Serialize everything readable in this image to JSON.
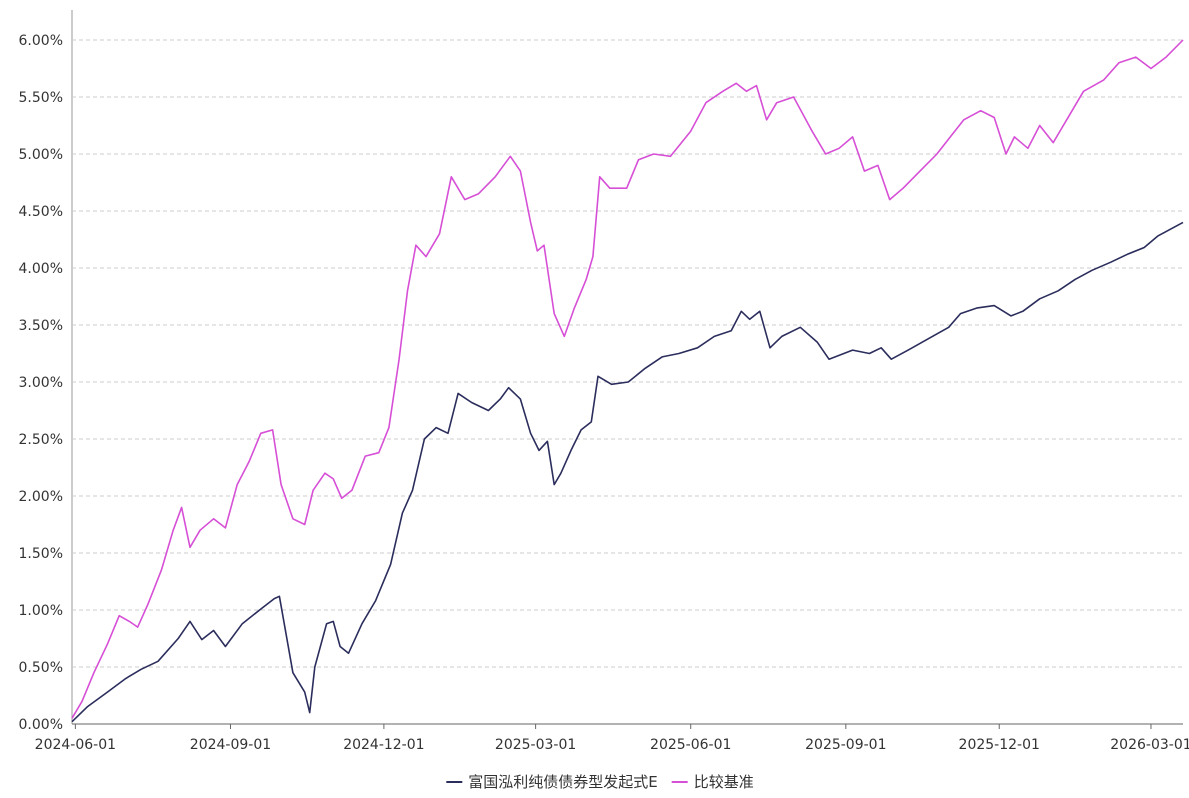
{
  "chart_data": {
    "type": "line",
    "title": "",
    "xlabel": "",
    "ylabel": "",
    "ylim": [
      0,
      6
    ],
    "y_unit": "%",
    "y_ticks": [
      "0.00%",
      "0.50%",
      "1.00%",
      "1.50%",
      "2.00%",
      "2.50%",
      "3.00%",
      "3.50%",
      "4.00%",
      "4.50%",
      "5.00%",
      "5.50%",
      "6.00%"
    ],
    "x_range": [
      "2024-05-30",
      "2026-03-20"
    ],
    "x_ticks": [
      "2024-06-01",
      "2024-09-01",
      "2024-12-01",
      "2025-03-01",
      "2025-06-01",
      "2025-09-01",
      "2025-12-01",
      "2026-03-01"
    ],
    "grid": true,
    "legend_position": "bottom-center",
    "series": [
      {
        "name": "富国泓利纯债债券型发起式E",
        "color": "#2b2d5c",
        "points": [
          [
            "2024-05-30",
            0.02
          ],
          [
            "2024-06-08",
            0.15
          ],
          [
            "2024-06-20",
            0.28
          ],
          [
            "2024-07-01",
            0.4
          ],
          [
            "2024-07-10",
            0.48
          ],
          [
            "2024-07-20",
            0.55
          ],
          [
            "2024-08-01",
            0.75
          ],
          [
            "2024-08-08",
            0.9
          ],
          [
            "2024-08-15",
            0.74
          ],
          [
            "2024-08-22",
            0.82
          ],
          [
            "2024-08-29",
            0.68
          ],
          [
            "2024-09-08",
            0.88
          ],
          [
            "2024-09-20",
            1.02
          ],
          [
            "2024-09-27",
            1.1
          ],
          [
            "2024-09-30",
            1.12
          ],
          [
            "2024-10-08",
            0.45
          ],
          [
            "2024-10-15",
            0.28
          ],
          [
            "2024-10-18",
            0.1
          ],
          [
            "2024-10-21",
            0.5
          ],
          [
            "2024-10-28",
            0.88
          ],
          [
            "2024-11-01",
            0.9
          ],
          [
            "2024-11-05",
            0.68
          ],
          [
            "2024-11-10",
            0.62
          ],
          [
            "2024-11-18",
            0.88
          ],
          [
            "2024-11-26",
            1.08
          ],
          [
            "2024-12-05",
            1.4
          ],
          [
            "2024-12-12",
            1.85
          ],
          [
            "2024-12-18",
            2.05
          ],
          [
            "2024-12-25",
            2.5
          ],
          [
            "2025-01-01",
            2.6
          ],
          [
            "2025-01-08",
            2.55
          ],
          [
            "2025-01-14",
            2.9
          ],
          [
            "2025-01-22",
            2.82
          ],
          [
            "2025-02-01",
            2.75
          ],
          [
            "2025-02-08",
            2.85
          ],
          [
            "2025-02-13",
            2.95
          ],
          [
            "2025-02-20",
            2.85
          ],
          [
            "2025-02-26",
            2.55
          ],
          [
            "2025-03-03",
            2.4
          ],
          [
            "2025-03-08",
            2.48
          ],
          [
            "2025-03-12",
            2.1
          ],
          [
            "2025-03-16",
            2.2
          ],
          [
            "2025-03-22",
            2.4
          ],
          [
            "2025-03-28",
            2.58
          ],
          [
            "2025-04-03",
            2.65
          ],
          [
            "2025-04-07",
            3.05
          ],
          [
            "2025-04-15",
            2.98
          ],
          [
            "2025-04-25",
            3.0
          ],
          [
            "2025-05-05",
            3.12
          ],
          [
            "2025-05-15",
            3.22
          ],
          [
            "2025-05-25",
            3.25
          ],
          [
            "2025-06-05",
            3.3
          ],
          [
            "2025-06-15",
            3.4
          ],
          [
            "2025-06-25",
            3.45
          ],
          [
            "2025-07-01",
            3.62
          ],
          [
            "2025-07-06",
            3.55
          ],
          [
            "2025-07-12",
            3.62
          ],
          [
            "2025-07-18",
            3.3
          ],
          [
            "2025-07-25",
            3.4
          ],
          [
            "2025-08-05",
            3.48
          ],
          [
            "2025-08-15",
            3.35
          ],
          [
            "2025-08-22",
            3.2
          ],
          [
            "2025-09-05",
            3.28
          ],
          [
            "2025-09-15",
            3.25
          ],
          [
            "2025-09-22",
            3.3
          ],
          [
            "2025-09-28",
            3.2
          ],
          [
            "2025-10-08",
            3.28
          ],
          [
            "2025-10-20",
            3.38
          ],
          [
            "2025-11-01",
            3.48
          ],
          [
            "2025-11-08",
            3.6
          ],
          [
            "2025-11-18",
            3.65
          ],
          [
            "2025-11-28",
            3.67
          ],
          [
            "2025-12-08",
            3.58
          ],
          [
            "2025-12-15",
            3.62
          ],
          [
            "2025-12-25",
            3.73
          ],
          [
            "2026-01-05",
            3.8
          ],
          [
            "2026-01-15",
            3.9
          ],
          [
            "2026-01-25",
            3.98
          ],
          [
            "2026-02-05",
            4.05
          ],
          [
            "2026-02-15",
            4.12
          ],
          [
            "2026-02-25",
            4.18
          ],
          [
            "2026-03-05",
            4.28
          ],
          [
            "2026-03-20",
            4.4
          ]
        ]
      },
      {
        "name": "比较基准",
        "color": "#d64fd6",
        "points": [
          [
            "2024-05-30",
            0.05
          ],
          [
            "2024-06-05",
            0.2
          ],
          [
            "2024-06-12",
            0.45
          ],
          [
            "2024-06-20",
            0.7
          ],
          [
            "2024-06-27",
            0.95
          ],
          [
            "2024-07-03",
            0.9
          ],
          [
            "2024-07-08",
            0.85
          ],
          [
            "2024-07-14",
            1.05
          ],
          [
            "2024-07-22",
            1.35
          ],
          [
            "2024-07-29",
            1.7
          ],
          [
            "2024-08-03",
            1.9
          ],
          [
            "2024-08-08",
            1.55
          ],
          [
            "2024-08-14",
            1.7
          ],
          [
            "2024-08-22",
            1.8
          ],
          [
            "2024-08-29",
            1.72
          ],
          [
            "2024-09-05",
            2.1
          ],
          [
            "2024-09-12",
            2.3
          ],
          [
            "2024-09-19",
            2.55
          ],
          [
            "2024-09-26",
            2.58
          ],
          [
            "2024-10-01",
            2.1
          ],
          [
            "2024-10-08",
            1.8
          ],
          [
            "2024-10-15",
            1.75
          ],
          [
            "2024-10-20",
            2.05
          ],
          [
            "2024-10-27",
            2.2
          ],
          [
            "2024-11-01",
            2.15
          ],
          [
            "2024-11-06",
            1.98
          ],
          [
            "2024-11-12",
            2.05
          ],
          [
            "2024-11-20",
            2.35
          ],
          [
            "2024-11-28",
            2.38
          ],
          [
            "2024-12-04",
            2.6
          ],
          [
            "2024-12-10",
            3.2
          ],
          [
            "2024-12-15",
            3.8
          ],
          [
            "2024-12-20",
            4.2
          ],
          [
            "2024-12-26",
            4.1
          ],
          [
            "2025-01-03",
            4.3
          ],
          [
            "2025-01-10",
            4.8
          ],
          [
            "2025-01-18",
            4.6
          ],
          [
            "2025-01-26",
            4.65
          ],
          [
            "2025-02-05",
            4.8
          ],
          [
            "2025-02-14",
            4.98
          ],
          [
            "2025-02-20",
            4.85
          ],
          [
            "2025-02-26",
            4.4
          ],
          [
            "2025-03-02",
            4.15
          ],
          [
            "2025-03-06",
            4.2
          ],
          [
            "2025-03-12",
            3.6
          ],
          [
            "2025-03-18",
            3.4
          ],
          [
            "2025-03-24",
            3.65
          ],
          [
            "2025-03-31",
            3.9
          ],
          [
            "2025-04-04",
            4.1
          ],
          [
            "2025-04-08",
            4.8
          ],
          [
            "2025-04-14",
            4.7
          ],
          [
            "2025-04-24",
            4.7
          ],
          [
            "2025-05-01",
            4.95
          ],
          [
            "2025-05-10",
            5.0
          ],
          [
            "2025-05-20",
            4.98
          ],
          [
            "2025-06-01",
            5.2
          ],
          [
            "2025-06-10",
            5.45
          ],
          [
            "2025-06-20",
            5.55
          ],
          [
            "2025-06-28",
            5.62
          ],
          [
            "2025-07-04",
            5.55
          ],
          [
            "2025-07-10",
            5.6
          ],
          [
            "2025-07-16",
            5.3
          ],
          [
            "2025-07-22",
            5.45
          ],
          [
            "2025-08-01",
            5.5
          ],
          [
            "2025-08-12",
            5.2
          ],
          [
            "2025-08-20",
            5.0
          ],
          [
            "2025-08-28",
            5.05
          ],
          [
            "2025-09-05",
            5.15
          ],
          [
            "2025-09-12",
            4.85
          ],
          [
            "2025-09-20",
            4.9
          ],
          [
            "2025-09-27",
            4.6
          ],
          [
            "2025-10-05",
            4.7
          ],
          [
            "2025-10-15",
            4.85
          ],
          [
            "2025-10-25",
            5.0
          ],
          [
            "2025-11-02",
            5.15
          ],
          [
            "2025-11-10",
            5.3
          ],
          [
            "2025-11-20",
            5.38
          ],
          [
            "2025-11-28",
            5.32
          ],
          [
            "2025-12-05",
            5.0
          ],
          [
            "2025-12-10",
            5.15
          ],
          [
            "2025-12-18",
            5.05
          ],
          [
            "2025-12-25",
            5.25
          ],
          [
            "2026-01-02",
            5.1
          ],
          [
            "2026-01-10",
            5.3
          ],
          [
            "2026-01-20",
            5.55
          ],
          [
            "2026-02-01",
            5.65
          ],
          [
            "2026-02-10",
            5.8
          ],
          [
            "2026-02-20",
            5.85
          ],
          [
            "2026-03-01",
            5.75
          ],
          [
            "2026-03-10",
            5.85
          ],
          [
            "2026-03-20",
            6.0
          ]
        ]
      }
    ]
  }
}
